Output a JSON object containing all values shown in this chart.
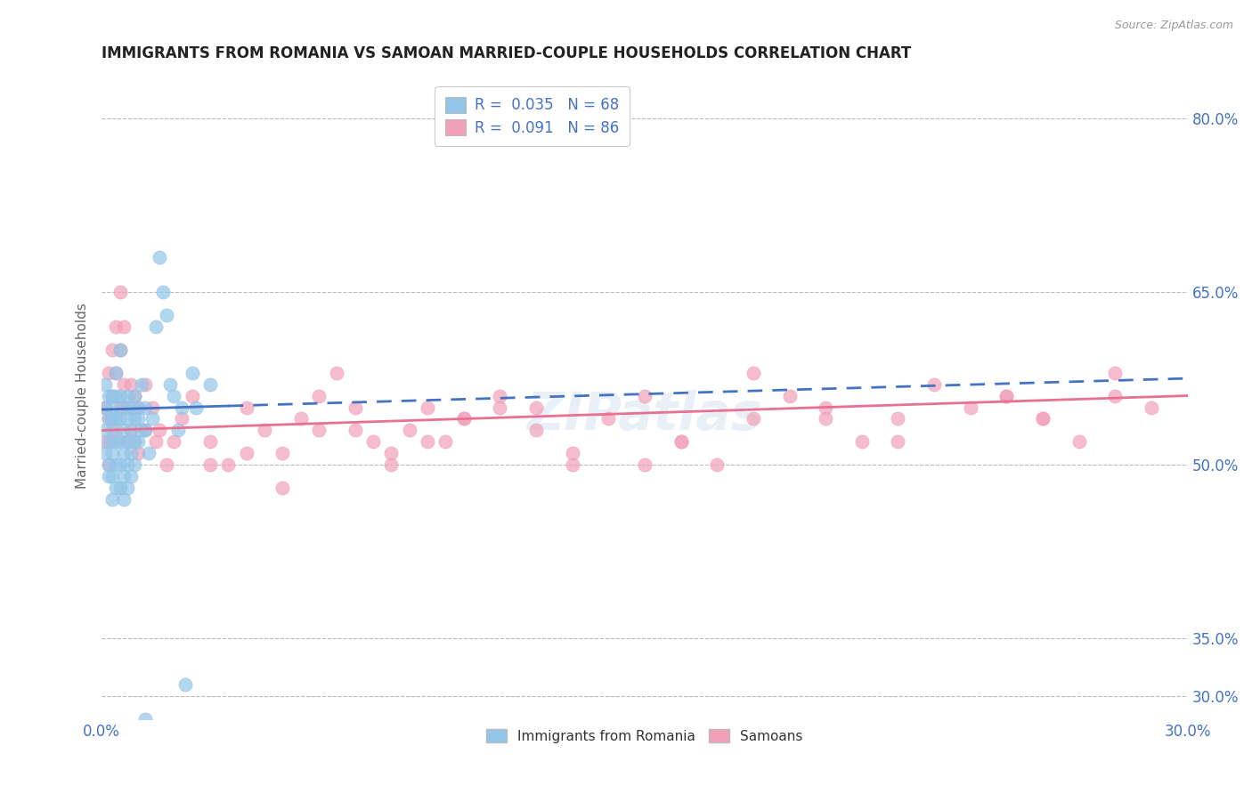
{
  "title": "IMMIGRANTS FROM ROMANIA VS SAMOAN MARRIED-COUPLE HOUSEHOLDS CORRELATION CHART",
  "source_text": "Source: ZipAtlas.com",
  "ylabel": "Married-couple Households",
  "xlim": [
    0.0,
    0.3
  ],
  "ylim": [
    0.28,
    0.84
  ],
  "xtick_labels": [
    "0.0%",
    "30.0%"
  ],
  "xtick_positions": [
    0.0,
    0.3
  ],
  "ytick_labels": [
    "80.0%",
    "65.0%",
    "50.0%",
    "35.0%",
    "30.0%"
  ],
  "ytick_positions": [
    0.8,
    0.65,
    0.5,
    0.35,
    0.3
  ],
  "color_blue": "#92C5E8",
  "color_pink": "#F2A0B8",
  "trendline_blue": "#4472C4",
  "trendline_pink": "#E87090",
  "R_blue": 0.035,
  "N_blue": 68,
  "R_pink": 0.091,
  "N_pink": 86,
  "legend_label_blue": "Immigrants from Romania",
  "legend_label_pink": "Samoans",
  "grid_color": "#BBBBBB",
  "background_color": "#FFFFFF",
  "title_color": "#222222",
  "axis_label_color": "#666666",
  "tick_label_color": "#4472C4",
  "blue_trendline_y0": 0.548,
  "blue_trendline_y1": 0.575,
  "pink_trendline_y0": 0.53,
  "pink_trendline_y1": 0.56,
  "blue_scatter_x": [
    0.001,
    0.001,
    0.001,
    0.001,
    0.002,
    0.002,
    0.002,
    0.002,
    0.002,
    0.003,
    0.003,
    0.003,
    0.003,
    0.003,
    0.003,
    0.003,
    0.004,
    0.004,
    0.004,
    0.004,
    0.004,
    0.004,
    0.005,
    0.005,
    0.005,
    0.005,
    0.005,
    0.005,
    0.006,
    0.006,
    0.006,
    0.006,
    0.006,
    0.007,
    0.007,
    0.007,
    0.007,
    0.007,
    0.008,
    0.008,
    0.008,
    0.008,
    0.009,
    0.009,
    0.009,
    0.009,
    0.01,
    0.01,
    0.01,
    0.011,
    0.011,
    0.012,
    0.012,
    0.013,
    0.014,
    0.015,
    0.016,
    0.017,
    0.018,
    0.019,
    0.02,
    0.021,
    0.022,
    0.023,
    0.025,
    0.026,
    0.03,
    0.012
  ],
  "blue_scatter_y": [
    0.53,
    0.55,
    0.57,
    0.51,
    0.54,
    0.52,
    0.56,
    0.49,
    0.5,
    0.53,
    0.55,
    0.51,
    0.49,
    0.47,
    0.54,
    0.56,
    0.52,
    0.5,
    0.54,
    0.48,
    0.56,
    0.58,
    0.52,
    0.54,
    0.5,
    0.48,
    0.56,
    0.6,
    0.53,
    0.55,
    0.51,
    0.49,
    0.47,
    0.54,
    0.52,
    0.56,
    0.5,
    0.48,
    0.55,
    0.53,
    0.51,
    0.49,
    0.54,
    0.52,
    0.5,
    0.56,
    0.54,
    0.52,
    0.55,
    0.53,
    0.57,
    0.55,
    0.53,
    0.51,
    0.54,
    0.62,
    0.68,
    0.65,
    0.63,
    0.57,
    0.56,
    0.53,
    0.55,
    0.31,
    0.58,
    0.55,
    0.57,
    0.28
  ],
  "pink_scatter_x": [
    0.001,
    0.001,
    0.002,
    0.002,
    0.002,
    0.003,
    0.003,
    0.003,
    0.004,
    0.004,
    0.004,
    0.005,
    0.005,
    0.005,
    0.006,
    0.006,
    0.007,
    0.007,
    0.008,
    0.008,
    0.009,
    0.009,
    0.01,
    0.01,
    0.012,
    0.012,
    0.014,
    0.015,
    0.016,
    0.018,
    0.02,
    0.022,
    0.025,
    0.03,
    0.035,
    0.04,
    0.045,
    0.05,
    0.055,
    0.06,
    0.065,
    0.07,
    0.075,
    0.08,
    0.085,
    0.09,
    0.095,
    0.1,
    0.11,
    0.12,
    0.13,
    0.14,
    0.15,
    0.16,
    0.17,
    0.18,
    0.19,
    0.2,
    0.21,
    0.22,
    0.23,
    0.24,
    0.25,
    0.26,
    0.27,
    0.28,
    0.29,
    0.06,
    0.08,
    0.1,
    0.13,
    0.16,
    0.2,
    0.25,
    0.28,
    0.04,
    0.07,
    0.11,
    0.15,
    0.22,
    0.26,
    0.03,
    0.05,
    0.09,
    0.12,
    0.18
  ],
  "pink_scatter_y": [
    0.55,
    0.52,
    0.58,
    0.54,
    0.5,
    0.6,
    0.56,
    0.52,
    0.62,
    0.58,
    0.53,
    0.65,
    0.6,
    0.55,
    0.62,
    0.57,
    0.55,
    0.52,
    0.57,
    0.53,
    0.56,
    0.52,
    0.55,
    0.51,
    0.57,
    0.53,
    0.55,
    0.52,
    0.53,
    0.5,
    0.52,
    0.54,
    0.56,
    0.52,
    0.5,
    0.55,
    0.53,
    0.51,
    0.54,
    0.56,
    0.58,
    0.55,
    0.52,
    0.5,
    0.53,
    0.55,
    0.52,
    0.54,
    0.56,
    0.53,
    0.51,
    0.54,
    0.56,
    0.52,
    0.5,
    0.54,
    0.56,
    0.55,
    0.52,
    0.54,
    0.57,
    0.55,
    0.56,
    0.54,
    0.52,
    0.56,
    0.55,
    0.53,
    0.51,
    0.54,
    0.5,
    0.52,
    0.54,
    0.56,
    0.58,
    0.51,
    0.53,
    0.55,
    0.5,
    0.52,
    0.54,
    0.5,
    0.48,
    0.52,
    0.55,
    0.58
  ]
}
